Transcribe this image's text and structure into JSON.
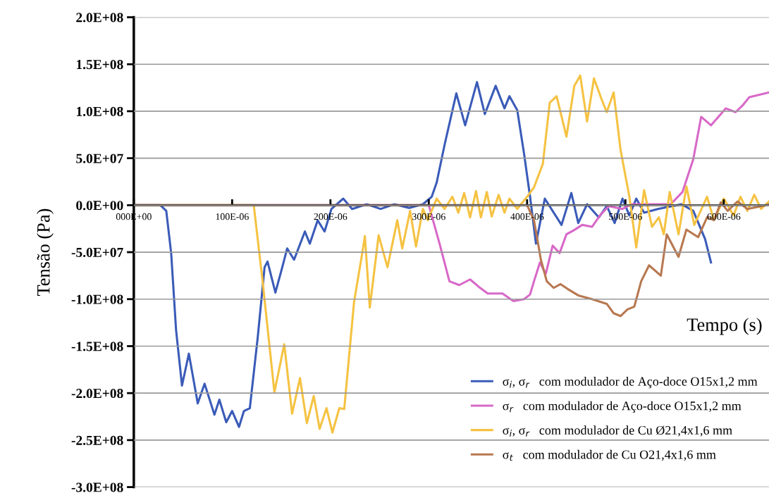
{
  "chart_data": {
    "type": "line",
    "xlabel": "Tempo (s)",
    "ylabel": "Tensão (Pa)",
    "xlim": [
      0,
      0.000646
    ],
    "ylim": [
      -300000000,
      200000000
    ],
    "xticks": [
      {
        "value": 0,
        "label": "000E+00"
      },
      {
        "value": 0.0001,
        "label": "100E-06"
      },
      {
        "value": 0.0002,
        "label": "200E-06"
      },
      {
        "value": 0.0003,
        "label": "300E-06"
      },
      {
        "value": 0.0004,
        "label": "400E-06"
      },
      {
        "value": 0.0005,
        "label": "500E-06"
      },
      {
        "value": 0.0006,
        "label": "600E-06"
      }
    ],
    "yticks": [
      {
        "value": 200000000,
        "label": "2.0E+08"
      },
      {
        "value": 150000000,
        "label": "1.5E+08"
      },
      {
        "value": 100000000,
        "label": "1.0E+08"
      },
      {
        "value": 50000000,
        "label": "5.0E+07"
      },
      {
        "value": 0,
        "label": "0.0E+00"
      },
      {
        "value": -50000000,
        "label": "-5.0E+07"
      },
      {
        "value": -100000000,
        "label": "-1.0E+08"
      },
      {
        "value": -150000000,
        "label": "-1.5E+08"
      },
      {
        "value": -200000000,
        "label": "-2.0E+08"
      },
      {
        "value": -250000000,
        "label": "-2.5E+08"
      },
      {
        "value": -300000000,
        "label": "-3.0E+08"
      }
    ],
    "grid": "y",
    "legend": "bottom right",
    "marker": "none",
    "line_style": "solid",
    "series": [
      {
        "name": "σ$_{i}$, σ$_{r}$   com modulador de Aço-doce O15x1,2 mm",
        "color": "#3a5bb8",
        "x": [
          0,
          2.7e-05,
          3.3e-05,
          3.8e-05,
          4.3e-05,
          4.9e-05,
          5.6e-05,
          6.5e-05,
          7.2e-05,
          8.2e-05,
          8.7e-05,
          9.4e-05,
          0.0001,
          0.000107,
          0.000112,
          0.000118,
          0.000126,
          0.000133,
          0.000136,
          0.000144,
          0.000151,
          0.000156,
          0.000163,
          0.000174,
          0.000179,
          0.000187,
          0.000194,
          0.000201,
          0.000213,
          0.000222,
          0.000237,
          0.000251,
          0.000265,
          0.00028,
          0.000294,
          0.000303,
          0.000308,
          0.000316,
          0.000328,
          0.000337,
          0.000349,
          0.000357,
          0.000368,
          0.000377,
          0.000382,
          0.00039,
          0.000397,
          0.000403,
          0.000409,
          0.000418,
          0.000435,
          0.000445,
          0.000452,
          0.000461,
          0.000473,
          0.000481,
          0.000489,
          0.000497,
          0.000504,
          0.000511,
          0.000519,
          0.000533,
          0.000557,
          0.000569,
          0.000581,
          0.000587
        ],
        "values": [
          0,
          0,
          -6000000,
          -51000000,
          -133000000,
          -192000000,
          -158000000,
          -211000000,
          -190000000,
          -223000000,
          -207000000,
          -231000000,
          -219000000,
          -236000000,
          -219000000,
          -216000000,
          -141000000,
          -66000000,
          -60000000,
          -93000000,
          -66000000,
          -46000000,
          -58000000,
          -28000000,
          -41000000,
          -16000000,
          -28000000,
          -4000000,
          7000000,
          -4000000,
          1000000,
          -4000000,
          1000000,
          -3000000,
          1000000,
          9000000,
          24000000,
          64000000,
          119000000,
          85000000,
          131000000,
          97000000,
          127000000,
          103000000,
          116000000,
          101000000,
          54000000,
          9000000,
          -41000000,
          7000000,
          -21000000,
          13000000,
          -19000000,
          1000000,
          -13000000,
          -1000000,
          -19000000,
          7000000,
          -11000000,
          7000000,
          -8000000,
          -4000000,
          1000000,
          -6000000,
          -36000000,
          -61000000
        ]
      },
      {
        "name": "σ$_{r}$   com modulador de Aço-doce O15x1,2 mm",
        "color": "#d868c8",
        "x": [
          0,
          0.0003,
          0.000311,
          0.000321,
          0.000331,
          0.000342,
          0.000351,
          0.00036,
          0.000375,
          0.000386,
          0.000397,
          0.000403,
          0.000407,
          0.000413,
          0.000419,
          0.000426,
          0.000433,
          0.00044,
          0.000447,
          0.000456,
          0.000466,
          0.000474,
          0.000483,
          0.000497,
          0.000506,
          0.000519,
          0.000531,
          0.000546,
          0.000558,
          0.000569,
          0.000577,
          0.000587,
          0.000602,
          0.000612,
          0.000619,
          0.000626,
          0.000646
        ],
        "values": [
          0,
          0,
          -41000000,
          -81000000,
          -85000000,
          -79000000,
          -87000000,
          -94000000,
          -94000000,
          -102000000,
          -100000000,
          -95000000,
          -81000000,
          -61000000,
          -73000000,
          -43000000,
          -51000000,
          -31000000,
          -27000000,
          -21000000,
          -23000000,
          -11000000,
          -1000000,
          -4000000,
          1000000,
          1000000,
          1000000,
          1000000,
          14000000,
          49000000,
          94000000,
          85000000,
          103000000,
          99000000,
          106000000,
          115000000,
          120000000
        ]
      },
      {
        "name": "σ$_{i}$, σ$_{r}$   com modulador de Cu Ø21,4x1,6 mm",
        "color": "#f5c242",
        "x": [
          0,
          0.000122,
          0.000131,
          0.000143,
          0.000153,
          0.000161,
          0.000169,
          0.000176,
          0.000183,
          0.000189,
          0.000196,
          0.000202,
          0.000209,
          0.000214,
          0.000224,
          0.000232,
          0.000235,
          0.00024,
          0.000249,
          0.000258,
          0.000268,
          0.000273,
          0.000281,
          0.000287,
          0.000294,
          0.000299,
          0.000308,
          0.000316,
          0.000324,
          0.00033,
          0.000336,
          0.000342,
          0.000348,
          0.000353,
          0.000359,
          0.000364,
          0.000371,
          0.000377,
          0.000382,
          0.00039,
          0.0004,
          0.000407,
          0.000416,
          0.000423,
          0.00043,
          0.00044,
          0.000448,
          0.000454,
          0.000461,
          0.000468,
          0.000476,
          0.000481,
          0.000488,
          0.000495,
          0.000504,
          0.000511,
          0.000519,
          0.000527,
          0.000534,
          0.000539,
          0.000545,
          0.000554,
          0.000562,
          0.00057,
          0.000583,
          0.00059,
          0.0006,
          0.00061,
          0.000617,
          0.000624,
          0.000631,
          0.000638,
          0.000646
        ],
        "values": [
          0,
          0,
          -81000000,
          -199000000,
          -148000000,
          -222000000,
          -184000000,
          -232000000,
          -203000000,
          -238000000,
          -216000000,
          -242000000,
          -216000000,
          -217000000,
          -103000000,
          -53000000,
          -33000000,
          -109000000,
          -32000000,
          -66000000,
          -16000000,
          -46000000,
          -6000000,
          -44000000,
          -4000000,
          -16000000,
          7000000,
          -4000000,
          9000000,
          -8000000,
          13000000,
          -13000000,
          15000000,
          -13000000,
          14000000,
          -12000000,
          11000000,
          -8000000,
          7000000,
          -4000000,
          9000000,
          19000000,
          44000000,
          109000000,
          116000000,
          73000000,
          127000000,
          138000000,
          89000000,
          135000000,
          112000000,
          99000000,
          120000000,
          59000000,
          9000000,
          -45000000,
          16000000,
          -23000000,
          -13000000,
          -31000000,
          14000000,
          -31000000,
          20000000,
          -21000000,
          9000000,
          -16000000,
          7000000,
          -11000000,
          9000000,
          -6000000,
          11000000,
          -4000000,
          4000000
        ]
      },
      {
        "name": "σ$_{t}$   com modulador de Cu O21,4x1,6 mm",
        "color": "#b87850",
        "x": [
          0,
          0.0004,
          0.000407,
          0.000414,
          0.00042,
          0.000427,
          0.000434,
          0.000441,
          0.000452,
          0.000466,
          0.000481,
          0.000488,
          0.000495,
          0.000502,
          0.000509,
          0.000516,
          0.000524,
          0.000536,
          0.000542,
          0.000554,
          0.000562,
          0.000574,
          0.000583,
          0.00059,
          0.000597,
          0.000604,
          0.000614,
          0.000624,
          0.000638,
          0.000646
        ],
        "values": [
          0,
          0,
          -16000000,
          -58000000,
          -81000000,
          -88000000,
          -84000000,
          -89000000,
          -96000000,
          -100000000,
          -105000000,
          -115000000,
          -118000000,
          -111000000,
          -108000000,
          -81000000,
          -64000000,
          -75000000,
          -31000000,
          -55000000,
          -26000000,
          -34000000,
          -13000000,
          -16000000,
          3000000,
          -6000000,
          4000000,
          -4000000,
          -1000000,
          1000000
        ]
      }
    ]
  }
}
